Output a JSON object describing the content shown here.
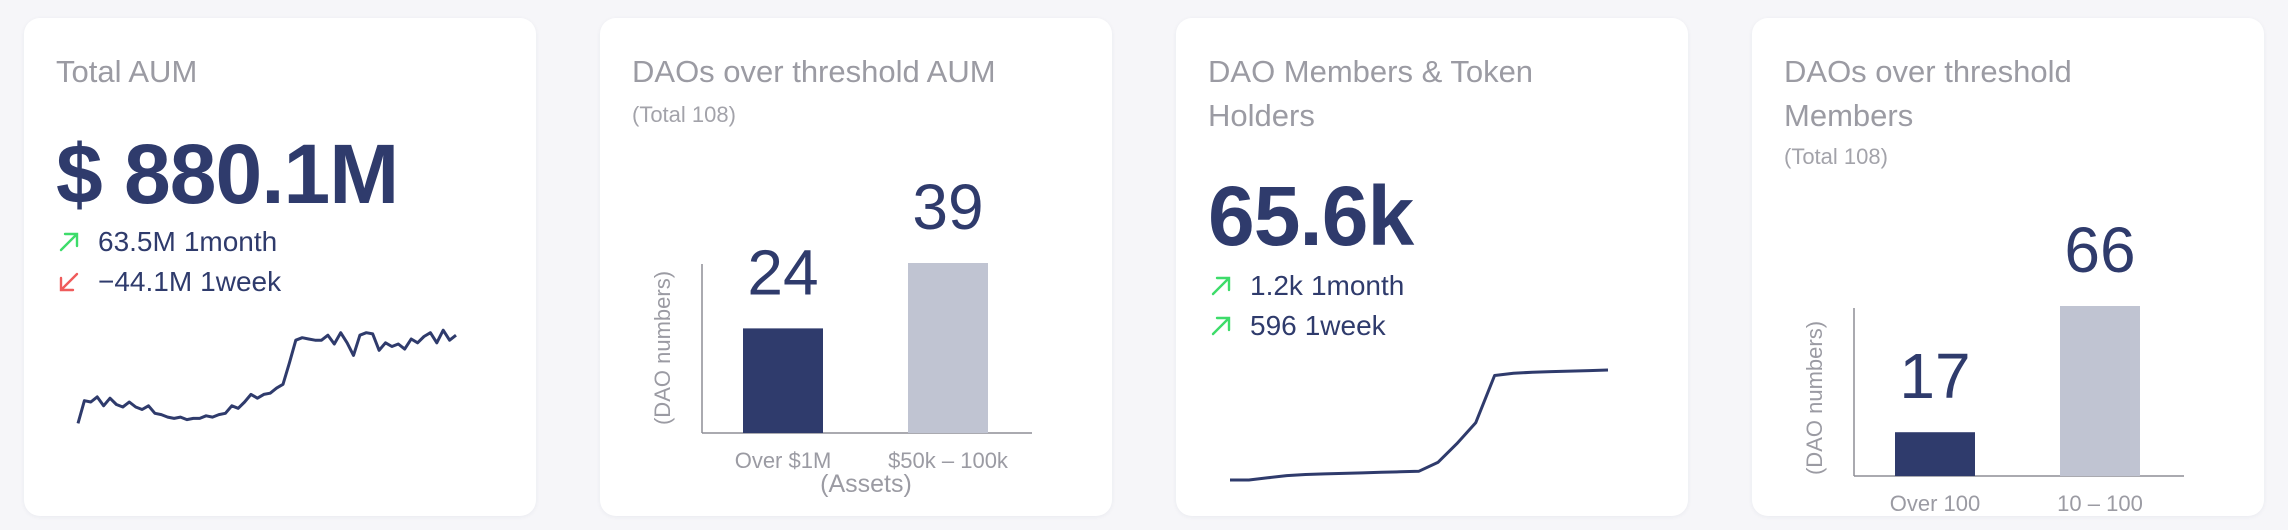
{
  "colors": {
    "primary": "#2f3b6c",
    "bar_secondary": "#c0c4d2",
    "up": "#3ddc6a",
    "down": "#ef5b5b",
    "muted": "#9b9ba3"
  },
  "cards": {
    "aum": {
      "title": "Total AUM",
      "value": "$ 880.1M",
      "deltas": [
        {
          "direction": "up",
          "icon": "arrow-up-right-icon",
          "value": "63.5M",
          "period": "1month"
        },
        {
          "direction": "down",
          "icon": "arrow-down-left-icon",
          "value": "−44.1M",
          "period": "1week"
        }
      ]
    },
    "daos_aum": {
      "title": "DAOs over threshold AUM",
      "subtitle": "(Total 108)"
    },
    "members": {
      "title": "DAO Members & Token Holders",
      "value": "65.6k",
      "deltas": [
        {
          "direction": "up",
          "icon": "arrow-up-right-icon",
          "value": "1.2k",
          "period": "1month"
        },
        {
          "direction": "up",
          "icon": "arrow-up-right-icon",
          "value": "596",
          "period": "1week"
        }
      ]
    },
    "daos_members": {
      "title": "DAOs over threshold Members",
      "subtitle": "(Total 108)"
    }
  },
  "chart_data": [
    {
      "id": "aum-sparkline",
      "type": "line",
      "title": "",
      "y": [
        10,
        28,
        27,
        31,
        24,
        30,
        25,
        23,
        27,
        23,
        21,
        24,
        18,
        17,
        15,
        14,
        15,
        13,
        14,
        14,
        16,
        15,
        17,
        18,
        24,
        22,
        27,
        33,
        30,
        33,
        34,
        38,
        41,
        58,
        76,
        78,
        77,
        76,
        76,
        80,
        73,
        82,
        74,
        64,
        80,
        82,
        81,
        68,
        74,
        71,
        73,
        69,
        77,
        74,
        79,
        82,
        74,
        84,
        76,
        80
      ],
      "ylim": [
        0,
        100
      ]
    },
    {
      "id": "daos-aum-bar",
      "type": "bar",
      "categories": [
        "Over $1M",
        "$50k – 100k"
      ],
      "values": [
        24,
        39
      ],
      "xlabel": "(Assets)",
      "ylabel": "(DAO numbers)",
      "ylim": [
        0,
        39
      ]
    },
    {
      "id": "members-sparkline",
      "type": "line",
      "title": "",
      "y": [
        0,
        0,
        2,
        4,
        5,
        5.5,
        6,
        6.5,
        7,
        7.5,
        8,
        16,
        33,
        52,
        95,
        97,
        98,
        98.5,
        99,
        99.5,
        100
      ],
      "ylim": [
        0,
        100
      ]
    },
    {
      "id": "daos-members-bar",
      "type": "bar",
      "categories": [
        "Over 100",
        "10 – 100"
      ],
      "values": [
        17,
        66
      ],
      "ylabel": "(DAO numbers)",
      "ylim": [
        0,
        66
      ]
    }
  ]
}
